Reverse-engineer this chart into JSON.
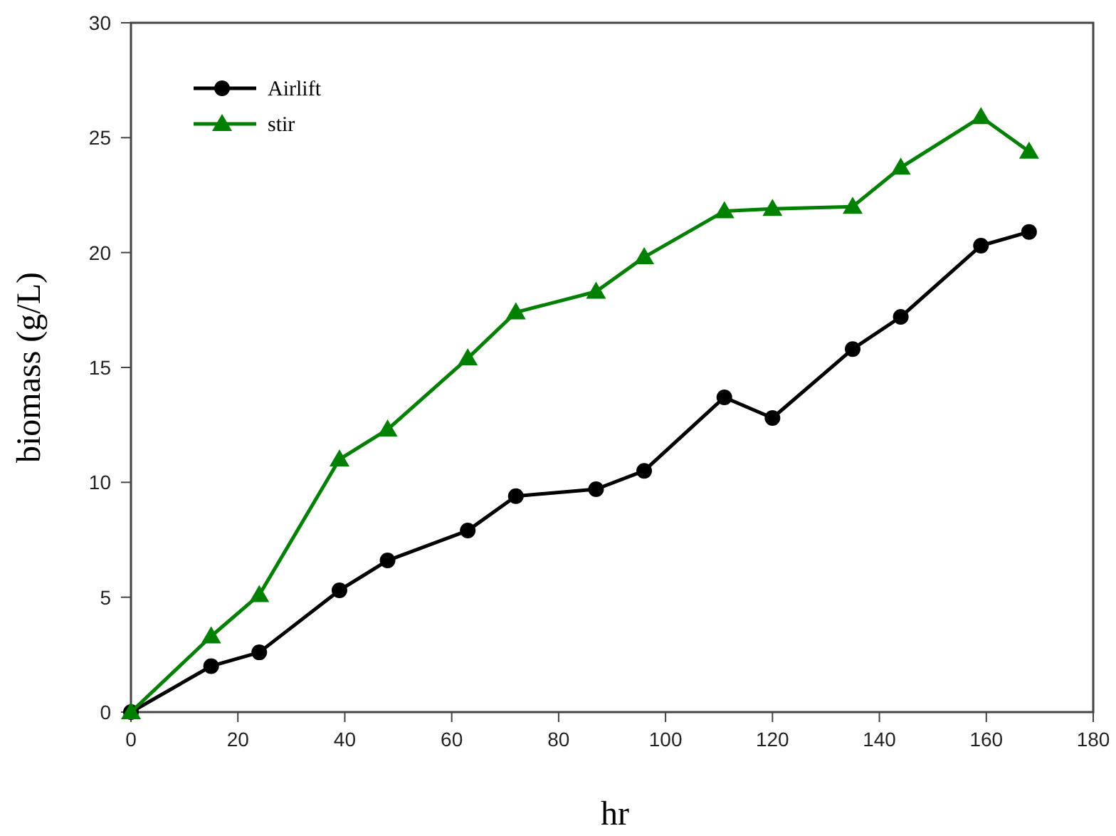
{
  "chart_data": {
    "type": "line",
    "xlabel": "hr",
    "ylabel": "biomass (g/L)",
    "xlim": [
      0,
      180
    ],
    "ylim": [
      0,
      30
    ],
    "xticks": [
      0,
      20,
      40,
      60,
      80,
      100,
      120,
      140,
      160,
      180
    ],
    "yticks": [
      0,
      5,
      10,
      15,
      20,
      25,
      30
    ],
    "grid": false,
    "legend": "top left",
    "line_style": "solid",
    "series": [
      {
        "name": "Airlift",
        "color": "#000000",
        "marker": "circle",
        "x": [
          0,
          15,
          24,
          39,
          48,
          63,
          72,
          87,
          96,
          111,
          120,
          135,
          144,
          159,
          168
        ],
        "values": [
          0,
          2,
          2.6,
          5.3,
          6.6,
          7.9,
          9.4,
          9.7,
          10.5,
          13.7,
          12.8,
          15.8,
          17.2,
          20.3,
          20.9
        ]
      },
      {
        "name": "stir",
        "color": "#008000",
        "marker": "triangle",
        "x": [
          0,
          15,
          24,
          39,
          48,
          63,
          72,
          87,
          96,
          111,
          120,
          135,
          144,
          159,
          168
        ],
        "values": [
          0,
          3.3,
          5.1,
          11,
          12.3,
          15.4,
          17.4,
          18.3,
          19.8,
          21.8,
          21.9,
          22,
          23.7,
          25.9,
          24.4
        ]
      }
    ]
  }
}
